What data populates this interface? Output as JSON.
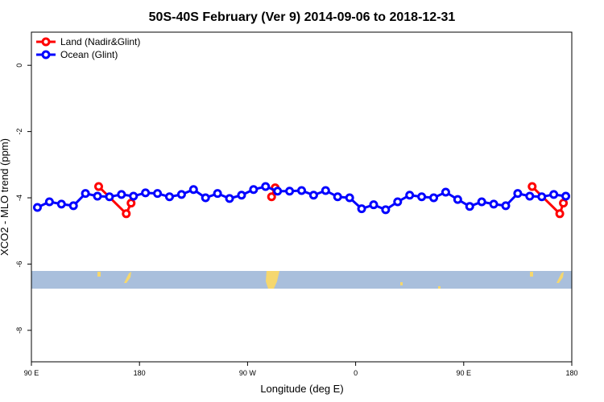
{
  "chart_data": {
    "type": "line",
    "title": "50S-40S February (Ver 9)   2014-09-06 to 2018-12-31",
    "x_label": "Longitude (deg E)",
    "y_label": "XCO2 - MLO trend (ppm)",
    "xlim": [
      90,
      540
    ],
    "ylim": [
      -8.95,
      1
    ],
    "xticks": [
      {
        "value": 90,
        "label": "90 E"
      },
      180,
      {
        "value": 270,
        "label": "90 W"
      },
      {
        "value": 360,
        "label": "0"
      },
      {
        "value": 450,
        "label": "90 E"
      },
      {
        "value": 540,
        "label": "180"
      }
    ],
    "yticks": [
      0,
      -2,
      -4,
      -6,
      -8
    ],
    "legend": "top-left",
    "series": [
      {
        "name": "Land (Nadir&Glint)",
        "color": "#ff0000",
        "x": [
          146,
          169,
          173,
          200,
          290,
          293,
          400,
          507,
          530,
          533
        ],
        "values": [
          -3.66,
          -4.48,
          -4.16,
          null,
          -3.97,
          -3.7,
          null,
          -3.66,
          -4.48,
          -4.16
        ]
      },
      {
        "name": "Ocean (Glint)",
        "color": "#0000ff",
        "x": [
          95,
          105,
          115,
          125,
          135,
          145,
          155,
          165,
          175,
          185,
          195,
          205,
          215,
          225,
          235,
          245,
          255,
          265,
          275,
          285,
          295,
          305,
          315,
          325,
          335,
          345,
          355,
          365,
          375,
          385,
          395,
          405,
          415,
          425,
          435,
          445,
          455,
          465,
          475,
          485,
          495,
          505,
          515,
          525,
          535
        ],
        "values": [
          -4.29,
          -4.12,
          -4.19,
          -4.24,
          -3.87,
          -3.95,
          -3.97,
          -3.9,
          -3.95,
          -3.85,
          -3.87,
          -3.97,
          -3.9,
          -3.75,
          -4.0,
          -3.87,
          -4.02,
          -3.92,
          -3.75,
          -3.66,
          -3.8,
          -3.8,
          -3.78,
          -3.92,
          -3.78,
          -3.97,
          -4.0,
          -4.33,
          -4.21,
          -4.36,
          -4.12,
          -3.92,
          -3.97,
          -4.0,
          -3.83,
          -4.05,
          -4.26,
          -4.12,
          -4.19,
          -4.24,
          -3.87,
          -3.95,
          -3.97,
          -3.9,
          -3.95
        ]
      }
    ]
  }
}
